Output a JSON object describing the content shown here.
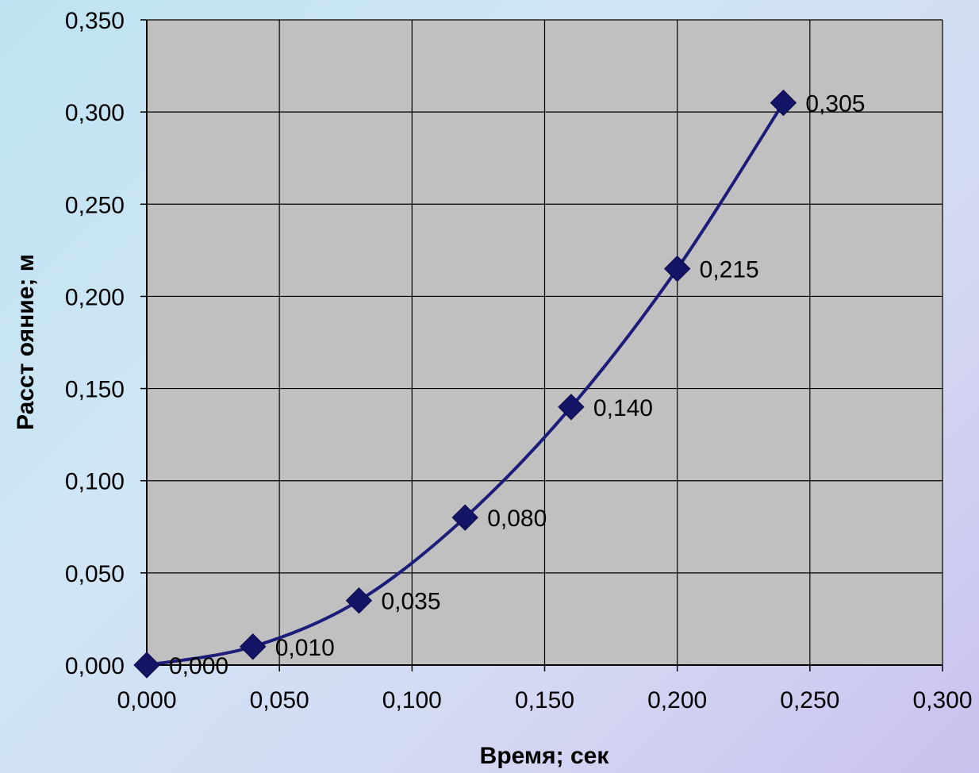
{
  "chart_data": {
    "type": "line",
    "xlabel": "Время; сек",
    "ylabel": "Расст ояние; м",
    "xlim": [
      0,
      0.3
    ],
    "ylim": [
      0,
      0.35
    ],
    "x_ticks": [
      "0,000",
      "0,050",
      "0,100",
      "0,150",
      "0,200",
      "0,250",
      "0,300"
    ],
    "y_ticks": [
      "0,000",
      "0,050",
      "0,100",
      "0,150",
      "0,200",
      "0,250",
      "0,300",
      "0,350"
    ],
    "grid": true,
    "smoothed": true,
    "colors": {
      "line": "#1c1c7a",
      "marker": "#141466",
      "plot_bg": "#c0c0c0",
      "grid": "#000000"
    },
    "series": [
      {
        "x": [
          0.0,
          0.04,
          0.08,
          0.12,
          0.16,
          0.2,
          0.24
        ],
        "y": [
          0.0,
          0.01,
          0.035,
          0.08,
          0.14,
          0.215,
          0.305
        ],
        "labels": [
          "0,000",
          "0,010",
          "0,035",
          "0,080",
          "0,140",
          "0,215",
          "0,305"
        ],
        "marker": "diamond"
      }
    ]
  }
}
